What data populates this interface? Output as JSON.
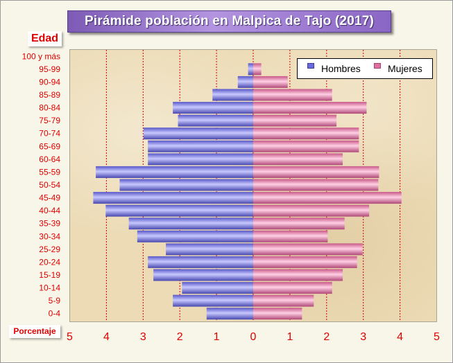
{
  "chart_data": {
    "type": "bar",
    "orientation": "population-pyramid",
    "title": "Pirámide población en Malpica de Tajo (2017)",
    "ylabel": "Edad",
    "xlabel": "Porcentaje",
    "categories": [
      "0-4",
      "5-9",
      "10-14",
      "15-19",
      "20-24",
      "25-29",
      "30-34",
      "35-39",
      "40-44",
      "45-49",
      "50-54",
      "55-59",
      "60-64",
      "65-69",
      "70-74",
      "75-79",
      "80-84",
      "85-89",
      "90-94",
      "95-99",
      "100 y más"
    ],
    "series": [
      {
        "name": "Hombres",
        "color": "#8080f0",
        "values": [
          1.27,
          2.19,
          1.94,
          2.72,
          2.87,
          2.38,
          3.16,
          3.39,
          4.02,
          4.36,
          3.64,
          4.29,
          2.87,
          2.87,
          2.99,
          2.05,
          2.19,
          1.11,
          0.42,
          0.14,
          0
        ]
      },
      {
        "name": "Mujeres",
        "color": "#f080b0",
        "values": [
          1.33,
          1.65,
          2.15,
          2.44,
          2.83,
          2.98,
          2.03,
          2.49,
          3.16,
          4.04,
          3.41,
          3.43,
          2.44,
          2.88,
          2.88,
          2.27,
          3.09,
          2.15,
          0.94,
          0.22,
          0
        ]
      }
    ],
    "xticks": [
      "5",
      "4",
      "3",
      "2",
      "1",
      "0",
      "1",
      "2",
      "3",
      "4",
      "5"
    ],
    "xlim": [
      -5,
      5
    ],
    "grid": "vertical dashed red",
    "legend_position": "top-right"
  },
  "labels": {
    "edad": "Edad",
    "porcentaje": "Porcentaje"
  },
  "legend": {
    "hombres": "Hombres",
    "mujeres": "Mujeres"
  }
}
